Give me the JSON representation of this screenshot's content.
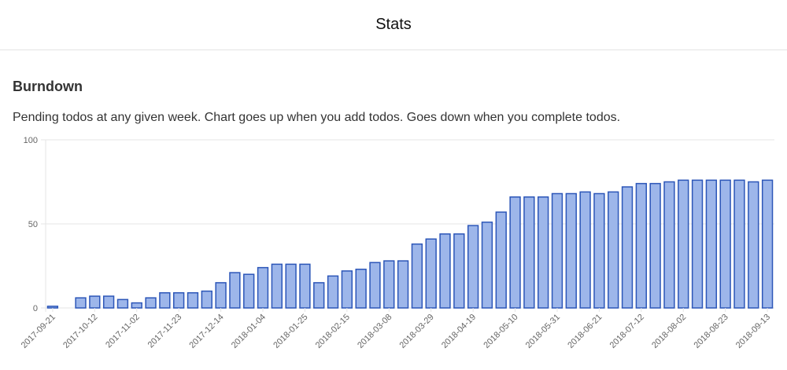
{
  "header": {
    "title": "Stats"
  },
  "section": {
    "title": "Burndown",
    "description": "Pending todos at any given week. Chart goes up when you add todos. Goes down when you complete todos."
  },
  "colors": {
    "bar_fill": "#9db6ea",
    "bar_stroke": "#2c56b8",
    "grid": "#e5e5e5",
    "axis_text": "#666666"
  },
  "chart_data": {
    "type": "bar",
    "title": "",
    "xlabel": "",
    "ylabel": "",
    "ylim": [
      0,
      100
    ],
    "yticks": [
      0,
      50,
      100
    ],
    "grid": true,
    "legend": "none",
    "x": [
      "2017-09-21",
      "2017-09-28",
      "2017-10-05",
      "2017-10-12",
      "2017-10-19",
      "2017-10-26",
      "2017-11-02",
      "2017-11-09",
      "2017-11-16",
      "2017-11-23",
      "2017-11-30",
      "2017-12-07",
      "2017-12-14",
      "2017-12-21",
      "2017-12-28",
      "2018-01-04",
      "2018-01-11",
      "2018-01-18",
      "2018-01-25",
      "2018-02-01",
      "2018-02-08",
      "2018-02-15",
      "2018-02-22",
      "2018-03-01",
      "2018-03-08",
      "2018-03-15",
      "2018-03-22",
      "2018-03-29",
      "2018-04-05",
      "2018-04-12",
      "2018-04-19",
      "2018-04-26",
      "2018-05-03",
      "2018-05-10",
      "2018-05-17",
      "2018-05-24",
      "2018-05-31",
      "2018-06-07",
      "2018-06-14",
      "2018-06-21",
      "2018-06-28",
      "2018-07-05",
      "2018-07-12",
      "2018-07-19",
      "2018-07-26",
      "2018-08-02",
      "2018-08-09",
      "2018-08-16",
      "2018-08-23",
      "2018-08-30",
      "2018-09-06",
      "2018-09-13"
    ],
    "x_tick_labels": [
      "2017-09-21",
      "2017-10-12",
      "2017-11-02",
      "2017-11-23",
      "2017-12-14",
      "2018-01-04",
      "2018-01-25",
      "2018-02-15",
      "2018-03-08",
      "2018-03-29",
      "2018-04-19",
      "2018-05-10",
      "2018-05-31",
      "2018-06-21",
      "2018-07-12",
      "2018-08-02",
      "2018-08-23",
      "2018-09-13"
    ],
    "values": [
      1,
      0,
      6,
      7,
      7,
      5,
      3,
      6,
      9,
      9,
      9,
      10,
      15,
      21,
      20,
      24,
      26,
      26,
      26,
      15,
      19,
      22,
      23,
      27,
      28,
      28,
      38,
      41,
      44,
      44,
      49,
      51,
      57,
      66,
      66,
      66,
      68,
      68,
      69,
      68,
      69,
      72,
      74,
      74,
      75,
      76,
      76,
      76,
      76,
      76,
      75,
      76
    ]
  }
}
